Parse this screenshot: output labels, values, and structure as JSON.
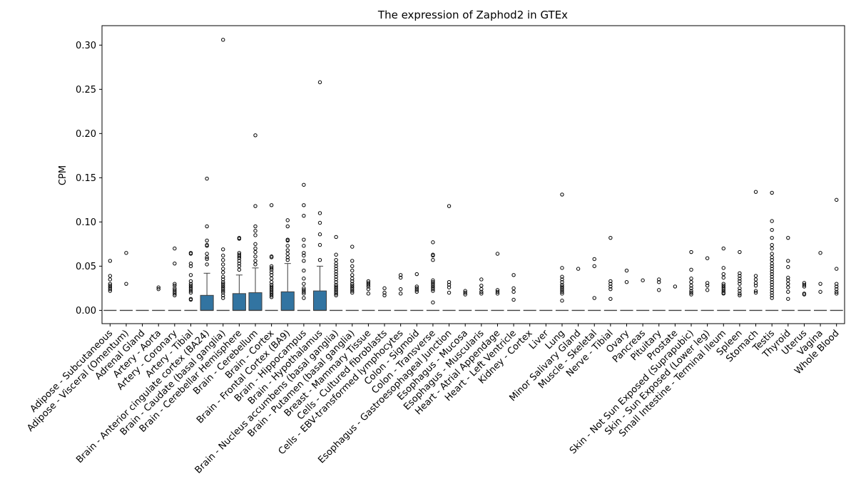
{
  "chart_data": {
    "type": "box",
    "title": "The expression of Zaphod2 in GTEx",
    "xlabel": "",
    "ylabel": "CPM",
    "ylim": [
      -0.015,
      0.322
    ],
    "yticks": [
      0.0,
      0.05,
      0.1,
      0.15,
      0.2,
      0.25,
      0.3
    ],
    "ytick_labels": [
      "0.00",
      "0.05",
      "0.10",
      "0.15",
      "0.20",
      "0.25",
      "0.30"
    ],
    "grid": false,
    "box_color": "#3274a1",
    "categories": [
      "Adipose - Subcutaneous",
      "Adipose - Visceral (Omentum)",
      "Adrenal Gland",
      "Artery - Aorta",
      "Artery - Coronary",
      "Artery - Tibial",
      "Brain - Anterior cingulate cortex (BA24)",
      "Brain - Caudate (basal ganglia)",
      "Brain - Cerebellar Hemisphere",
      "Brain - Cerebellum",
      "Brain - Cortex",
      "Brain - Frontal Cortex (BA9)",
      "Brain - Hippocampus",
      "Brain - Hypothalamus",
      "Brain - Nucleus accumbens (basal ganglia)",
      "Brain - Putamen (basal ganglia)",
      "Breast - Mammary Tissue",
      "Cells - Cultured fibroblasts",
      "Cells - EBV-transformed lymphocytes",
      "Colon - Sigmoid",
      "Colon - Transverse",
      "Esophagus - Gastroesophageal Junction",
      "Esophagus - Mucosa",
      "Esophagus - Muscularis",
      "Heart - Atrial Appendage",
      "Heart - Left Ventricle",
      "Kidney - Cortex",
      "Liver",
      "Lung",
      "Minor Salivary Gland",
      "Muscle - Skeletal",
      "Nerve - Tibial",
      "Ovary",
      "Pancreas",
      "Pituitary",
      "Prostate",
      "Skin - Not Sun Exposed (Suprapubic)",
      "Skin - Sun Exposed (Lower leg)",
      "Small Intestine - Terminal Ileum",
      "Spleen",
      "Stomach",
      "Testis",
      "Thyroid",
      "Uterus",
      "Vagina",
      "Whole Blood"
    ],
    "boxes": [
      {
        "q1": 0,
        "median": 0,
        "q3": 0,
        "whisker_low": 0,
        "whisker_high": 0,
        "outliers": [
          0.056,
          0.039,
          0.035,
          0.03,
          0.028,
          0.026,
          0.024,
          0.022
        ]
      },
      {
        "q1": 0,
        "median": 0,
        "q3": 0,
        "whisker_low": 0,
        "whisker_high": 0,
        "outliers": [
          0.065,
          0.03
        ]
      },
      {
        "q1": 0,
        "median": 0,
        "q3": 0,
        "whisker_low": 0,
        "whisker_high": 0,
        "outliers": []
      },
      {
        "q1": 0,
        "median": 0,
        "q3": 0,
        "whisker_low": 0,
        "whisker_high": 0,
        "outliers": [
          0.026,
          0.024
        ]
      },
      {
        "q1": 0,
        "median": 0,
        "q3": 0,
        "whisker_low": 0,
        "whisker_high": 0,
        "outliers": [
          0.07,
          0.053,
          0.03,
          0.028,
          0.025,
          0.023,
          0.021,
          0.019,
          0.017
        ]
      },
      {
        "q1": 0,
        "median": 0,
        "q3": 0,
        "whisker_low": 0,
        "whisker_high": 0,
        "outliers": [
          0.065,
          0.064,
          0.053,
          0.05,
          0.04,
          0.033,
          0.03,
          0.028,
          0.026,
          0.024,
          0.022,
          0.02,
          0.013,
          0.012
        ]
      },
      {
        "q1": 0,
        "median": 0,
        "q3": 0.017,
        "whisker_low": 0,
        "whisker_high": 0.042,
        "outliers": [
          0.149,
          0.095,
          0.079,
          0.074,
          0.073,
          0.064,
          0.06,
          0.058,
          0.052
        ]
      },
      {
        "q1": 0,
        "median": 0,
        "q3": 0,
        "whisker_low": 0,
        "whisker_high": 0,
        "outliers": [
          0.306,
          0.069,
          0.062,
          0.057,
          0.052,
          0.047,
          0.043,
          0.038,
          0.035,
          0.032,
          0.03,
          0.028,
          0.026,
          0.024,
          0.022,
          0.02,
          0.017,
          0.014
        ]
      },
      {
        "q1": 0,
        "median": 0,
        "q3": 0.019,
        "whisker_low": 0,
        "whisker_high": 0.04,
        "outliers": [
          0.082,
          0.081,
          0.065,
          0.063,
          0.061,
          0.059,
          0.056,
          0.053,
          0.05,
          0.046
        ]
      },
      {
        "q1": 0,
        "median": 0,
        "q3": 0.02,
        "whisker_low": 0,
        "whisker_high": 0.048,
        "outliers": [
          0.198,
          0.118,
          0.095,
          0.09,
          0.085,
          0.075,
          0.07,
          0.066,
          0.061,
          0.056,
          0.052
        ]
      },
      {
        "q1": 0,
        "median": 0,
        "q3": 0,
        "whisker_low": 0,
        "whisker_high": 0,
        "outliers": [
          0.119,
          0.061,
          0.06,
          0.05,
          0.048,
          0.046,
          0.043,
          0.04,
          0.036,
          0.032,
          0.029,
          0.027,
          0.025,
          0.023,
          0.021,
          0.019,
          0.017,
          0.015
        ]
      },
      {
        "q1": 0,
        "median": 0,
        "q3": 0.021,
        "whisker_low": 0,
        "whisker_high": 0.053,
        "outliers": [
          0.102,
          0.095,
          0.08,
          0.079,
          0.073,
          0.068,
          0.064,
          0.06,
          0.057
        ]
      },
      {
        "q1": 0,
        "median": 0,
        "q3": 0,
        "whisker_low": 0,
        "whisker_high": 0,
        "outliers": [
          0.142,
          0.119,
          0.107,
          0.08,
          0.073,
          0.065,
          0.062,
          0.056,
          0.045,
          0.036,
          0.03,
          0.025,
          0.023,
          0.021,
          0.019,
          0.014
        ]
      },
      {
        "q1": 0,
        "median": 0,
        "q3": 0.022,
        "whisker_low": 0,
        "whisker_high": 0.05,
        "outliers": [
          0.258,
          0.11,
          0.099,
          0.086,
          0.074,
          0.057
        ]
      },
      {
        "q1": 0,
        "median": 0,
        "q3": 0,
        "whisker_low": 0,
        "whisker_high": 0,
        "outliers": [
          0.083,
          0.063,
          0.057,
          0.053,
          0.05,
          0.047,
          0.044,
          0.041,
          0.038,
          0.035,
          0.032,
          0.029,
          0.027,
          0.025,
          0.023,
          0.021,
          0.019,
          0.017
        ]
      },
      {
        "q1": 0,
        "median": 0,
        "q3": 0,
        "whisker_low": 0,
        "whisker_high": 0,
        "outliers": [
          0.072,
          0.056,
          0.05,
          0.045,
          0.04,
          0.036,
          0.033,
          0.03,
          0.028,
          0.026,
          0.024,
          0.022,
          0.02
        ]
      },
      {
        "q1": 0,
        "median": 0,
        "q3": 0,
        "whisker_low": 0,
        "whisker_high": 0,
        "outliers": [
          0.033,
          0.031,
          0.029,
          0.027,
          0.024,
          0.019
        ]
      },
      {
        "q1": 0,
        "median": 0,
        "q3": 0,
        "whisker_low": 0,
        "whisker_high": 0,
        "outliers": [
          0.025,
          0.02,
          0.017
        ]
      },
      {
        "q1": 0,
        "median": 0,
        "q3": 0,
        "whisker_low": 0,
        "whisker_high": 0,
        "outliers": [
          0.04,
          0.037,
          0.024,
          0.019
        ]
      },
      {
        "q1": 0,
        "median": 0,
        "q3": 0,
        "whisker_low": 0,
        "whisker_high": 0,
        "outliers": [
          0.041,
          0.027,
          0.025,
          0.023,
          0.021
        ]
      },
      {
        "q1": 0,
        "median": 0,
        "q3": 0,
        "whisker_low": 0,
        "whisker_high": 0,
        "outliers": [
          0.077,
          0.063,
          0.062,
          0.057,
          0.034,
          0.032,
          0.03,
          0.028,
          0.026,
          0.024,
          0.022,
          0.009
        ]
      },
      {
        "q1": 0,
        "median": 0,
        "q3": 0,
        "whisker_low": 0,
        "whisker_high": 0,
        "outliers": [
          0.118,
          0.032,
          0.029,
          0.026,
          0.02
        ]
      },
      {
        "q1": 0,
        "median": 0,
        "q3": 0,
        "whisker_low": 0,
        "whisker_high": 0,
        "outliers": [
          0.022,
          0.02,
          0.018
        ]
      },
      {
        "q1": 0,
        "median": 0,
        "q3": 0,
        "whisker_low": 0,
        "whisker_high": 0,
        "outliers": [
          0.035,
          0.028,
          0.024,
          0.021,
          0.019
        ]
      },
      {
        "q1": 0,
        "median": 0,
        "q3": 0,
        "whisker_low": 0,
        "whisker_high": 0,
        "outliers": [
          0.064,
          0.023,
          0.021,
          0.019
        ]
      },
      {
        "q1": 0,
        "median": 0,
        "q3": 0,
        "whisker_low": 0,
        "whisker_high": 0,
        "outliers": [
          0.04,
          0.025,
          0.021,
          0.012
        ]
      },
      {
        "q1": 0,
        "median": 0,
        "q3": 0,
        "whisker_low": 0,
        "whisker_high": 0,
        "outliers": []
      },
      {
        "q1": 0,
        "median": 0,
        "q3": 0,
        "whisker_low": 0,
        "whisker_high": 0,
        "outliers": []
      },
      {
        "q1": 0,
        "median": 0,
        "q3": 0,
        "whisker_low": 0,
        "whisker_high": 0,
        "outliers": [
          0.131,
          0.048,
          0.038,
          0.035,
          0.032,
          0.029,
          0.027,
          0.025,
          0.023,
          0.021,
          0.019,
          0.011
        ]
      },
      {
        "q1": 0,
        "median": 0,
        "q3": 0,
        "whisker_low": 0,
        "whisker_high": 0,
        "outliers": [
          0.047
        ]
      },
      {
        "q1": 0,
        "median": 0,
        "q3": 0,
        "whisker_low": 0,
        "whisker_high": 0,
        "outliers": [
          0.058,
          0.05,
          0.014
        ]
      },
      {
        "q1": 0,
        "median": 0,
        "q3": 0,
        "whisker_low": 0,
        "whisker_high": 0,
        "outliers": [
          0.082,
          0.033,
          0.03,
          0.027,
          0.024,
          0.013
        ]
      },
      {
        "q1": 0,
        "median": 0,
        "q3": 0,
        "whisker_low": 0,
        "whisker_high": 0,
        "outliers": [
          0.045,
          0.032
        ]
      },
      {
        "q1": 0,
        "median": 0,
        "q3": 0,
        "whisker_low": 0,
        "whisker_high": 0,
        "outliers": [
          0.034
        ]
      },
      {
        "q1": 0,
        "median": 0,
        "q3": 0,
        "whisker_low": 0,
        "whisker_high": 0,
        "outliers": [
          0.035,
          0.032,
          0.023
        ]
      },
      {
        "q1": 0,
        "median": 0,
        "q3": 0,
        "whisker_low": 0,
        "whisker_high": 0,
        "outliers": [
          0.027
        ]
      },
      {
        "q1": 0,
        "median": 0,
        "q3": 0,
        "whisker_low": 0,
        "whisker_high": 0,
        "outliers": [
          0.066,
          0.046,
          0.036,
          0.032,
          0.028,
          0.025,
          0.022,
          0.02,
          0.018
        ]
      },
      {
        "q1": 0,
        "median": 0,
        "q3": 0,
        "whisker_low": 0,
        "whisker_high": 0,
        "outliers": [
          0.059,
          0.031,
          0.028,
          0.023
        ]
      },
      {
        "q1": 0,
        "median": 0,
        "q3": 0,
        "whisker_low": 0,
        "whisker_high": 0,
        "outliers": [
          0.07,
          0.048,
          0.041,
          0.037,
          0.03,
          0.028,
          0.026,
          0.024,
          0.022,
          0.02,
          0.019
        ]
      },
      {
        "q1": 0,
        "median": 0,
        "q3": 0,
        "whisker_low": 0,
        "whisker_high": 0,
        "outliers": [
          0.066,
          0.042,
          0.039,
          0.036,
          0.033,
          0.03,
          0.025,
          0.022,
          0.019,
          0.017
        ]
      },
      {
        "q1": 0,
        "median": 0,
        "q3": 0,
        "whisker_low": 0,
        "whisker_high": 0,
        "outliers": [
          0.134,
          0.039,
          0.035,
          0.031,
          0.028,
          0.022,
          0.02
        ]
      },
      {
        "q1": 0,
        "median": 0,
        "q3": 0,
        "whisker_low": 0,
        "whisker_high": 0,
        "outliers": [
          0.133,
          0.101,
          0.091,
          0.082,
          0.074,
          0.07,
          0.064,
          0.06,
          0.057,
          0.053,
          0.05,
          0.047,
          0.044,
          0.041,
          0.038,
          0.035,
          0.032,
          0.029,
          0.026,
          0.023,
          0.02,
          0.017,
          0.014
        ]
      },
      {
        "q1": 0,
        "median": 0,
        "q3": 0,
        "whisker_low": 0,
        "whisker_high": 0,
        "outliers": [
          0.082,
          0.056,
          0.049,
          0.037,
          0.034,
          0.03,
          0.026,
          0.021,
          0.013
        ]
      },
      {
        "q1": 0,
        "median": 0,
        "q3": 0,
        "whisker_low": 0,
        "whisker_high": 0,
        "outliers": [
          0.031,
          0.029,
          0.027,
          0.019,
          0.018
        ]
      },
      {
        "q1": 0,
        "median": 0,
        "q3": 0,
        "whisker_low": 0,
        "whisker_high": 0,
        "outliers": [
          0.065,
          0.03,
          0.021
        ]
      },
      {
        "q1": 0,
        "median": 0,
        "q3": 0,
        "whisker_low": 0,
        "whisker_high": 0,
        "outliers": [
          0.125,
          0.047,
          0.03,
          0.027,
          0.024,
          0.021,
          0.019
        ]
      }
    ]
  }
}
